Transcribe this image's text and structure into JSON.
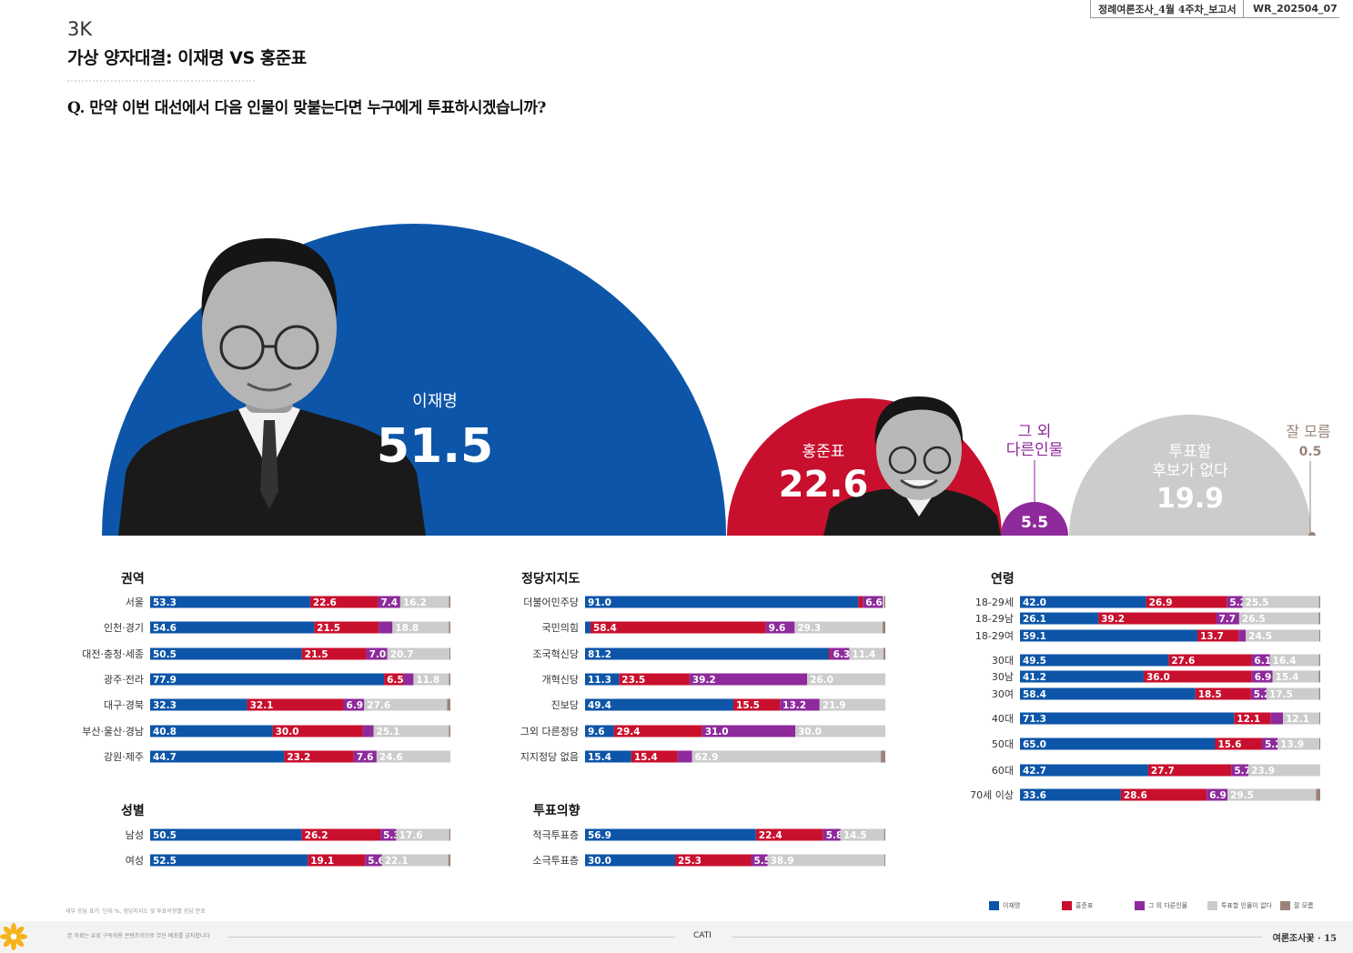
{
  "header": {
    "report_name": "정례여론조사_4월 4주차_보고서",
    "report_code": "WR_202504_07"
  },
  "section_code": "3K",
  "page_title": "가상 양자대결: 이재명 VS 홍준표",
  "question": "Q. 만약 이번 대선에서 다음 인물이 맞붙는다면 누구에게 투표하시겠습니까?",
  "colors": {
    "lee": "#0d55a8",
    "hong": "#c8102e",
    "other": "#8e2a9b",
    "none": "#cccccc",
    "dk": "#9a8479"
  },
  "chart_data": [
    {
      "type": "bubble",
      "title": "",
      "series": [
        {
          "name": "이재명",
          "value": 51.5
        },
        {
          "name": "홍준표",
          "value": 22.6
        },
        {
          "name": "그 외 다른인물",
          "value": 5.5
        },
        {
          "name": "투표할 후보가 없다",
          "value": 19.9
        },
        {
          "name": "잘 모름",
          "value": 0.5
        }
      ]
    },
    {
      "type": "stacked-bar",
      "series_names": [
        "이재명",
        "홍준표",
        "그 외 다른인물",
        "투표할 인물이 없다",
        "잘 모름"
      ],
      "groups": [
        {
          "title": "권역",
          "rows": [
            {
              "label": "서울",
              "values": [
                53.3,
                22.6,
                7.4,
                16.2,
                0.5
              ]
            },
            {
              "label": "인천·경기",
              "values": [
                54.6,
                21.5,
                4.6,
                18.8,
                0.5
              ]
            },
            {
              "label": "대전·충청·세종",
              "values": [
                50.5,
                21.5,
                7.0,
                20.7,
                0.3
              ]
            },
            {
              "label": "광주·전라",
              "values": [
                77.9,
                6.5,
                3.3,
                11.8,
                0.5
              ]
            },
            {
              "label": "대구·경북",
              "values": [
                32.3,
                32.1,
                6.9,
                27.6,
                1.1
              ]
            },
            {
              "label": "부산·울산·경남",
              "values": [
                40.8,
                30.0,
                3.6,
                25.1,
                0.5
              ]
            },
            {
              "label": "강원·제주",
              "values": [
                44.7,
                23.2,
                7.6,
                24.6,
                0.0
              ]
            }
          ]
        },
        {
          "title": "성별",
          "rows": [
            {
              "label": "남성",
              "values": [
                50.5,
                26.2,
                5.3,
                17.6,
                0.4
              ]
            },
            {
              "label": "여성",
              "values": [
                52.5,
                19.1,
                5.6,
                22.1,
                0.7
              ]
            }
          ]
        },
        {
          "title": "정당지지도",
          "rows": [
            {
              "label": "더불어민주당",
              "values": [
                91.0,
                1.5,
                6.6,
                0.5,
                0.4
              ]
            },
            {
              "label": "국민의힘",
              "values": [
                1.8,
                58.4,
                9.6,
                29.3,
                0.9
              ]
            },
            {
              "label": "조국혁신당",
              "values": [
                81.2,
                0.5,
                6.3,
                11.4,
                0.6
              ]
            },
            {
              "label": "개혁신당",
              "values": [
                11.3,
                23.5,
                39.2,
                26.0,
                0.0
              ]
            },
            {
              "label": "진보당",
              "values": [
                49.4,
                15.5,
                13.2,
                21.9,
                0.0
              ]
            },
            {
              "label": "그외 다른정당",
              "values": [
                9.6,
                29.4,
                31.0,
                30.0,
                0.0
              ]
            },
            {
              "label": "지지정당 없음",
              "values": [
                15.4,
                15.4,
                4.8,
                62.9,
                1.5
              ]
            }
          ]
        },
        {
          "title": "투표의향",
          "rows": [
            {
              "label": "적극투표층",
              "values": [
                56.9,
                22.4,
                5.8,
                14.5,
                0.4
              ]
            },
            {
              "label": "소극투표층",
              "values": [
                30.0,
                25.3,
                5.5,
                38.9,
                0.3
              ]
            }
          ]
        },
        {
          "title": "연령",
          "rows": [
            {
              "label": "18-29세",
              "values": [
                42.0,
                26.9,
                5.2,
                25.5,
                0.4
              ]
            },
            {
              "label": "18-29남",
              "values": [
                26.1,
                39.2,
                7.7,
                26.5,
                0.5
              ]
            },
            {
              "label": "18-29여",
              "values": [
                59.1,
                13.7,
                2.4,
                24.5,
                0.3
              ]
            },
            {
              "label": "30대",
              "values": [
                49.5,
                27.6,
                6.1,
                16.4,
                0.4
              ]
            },
            {
              "label": "30남",
              "values": [
                41.2,
                36.0,
                6.9,
                15.4,
                0.5
              ]
            },
            {
              "label": "30여",
              "values": [
                58.4,
                18.5,
                5.2,
                17.5,
                0.4
              ]
            },
            {
              "label": "40대",
              "values": [
                71.3,
                12.1,
                4.2,
                12.1,
                0.3
              ]
            },
            {
              "label": "50대",
              "values": [
                65.0,
                15.6,
                5.2,
                13.9,
                0.3
              ]
            },
            {
              "label": "60대",
              "values": [
                42.7,
                27.7,
                5.7,
                23.9,
                0.0
              ]
            },
            {
              "label": "70세 이상",
              "values": [
                33.6,
                28.6,
                6.9,
                29.5,
                1.4
              ]
            }
          ]
        }
      ]
    }
  ],
  "bubble_labels": {
    "lee_name": "이재명",
    "lee_value": "51.5",
    "hong_name": "홍준표",
    "hong_value": "22.6",
    "other_name_1": "그 외",
    "other_name_2": "다른인물",
    "other_value": "5.5",
    "none_name_1": "투표할",
    "none_name_2": "후보가 없다",
    "none_value": "19.9",
    "dk_name": "잘 모름",
    "dk_value": "0.5"
  },
  "legend": [
    "이재명",
    "홍준표",
    "그 외 다른인물",
    "투표할 인물이 없다",
    "잘 모름"
  ],
  "footnote": "세부 응답 표기: 단위 %, 정당지지도 및 투표의향별 응답 분포",
  "footer": {
    "copyright": "본 자료는 유료 구독자용 콘텐츠이므로 무단 배포를 금지합니다",
    "method": "CATI",
    "page": "여론조사꽃 · 15"
  }
}
